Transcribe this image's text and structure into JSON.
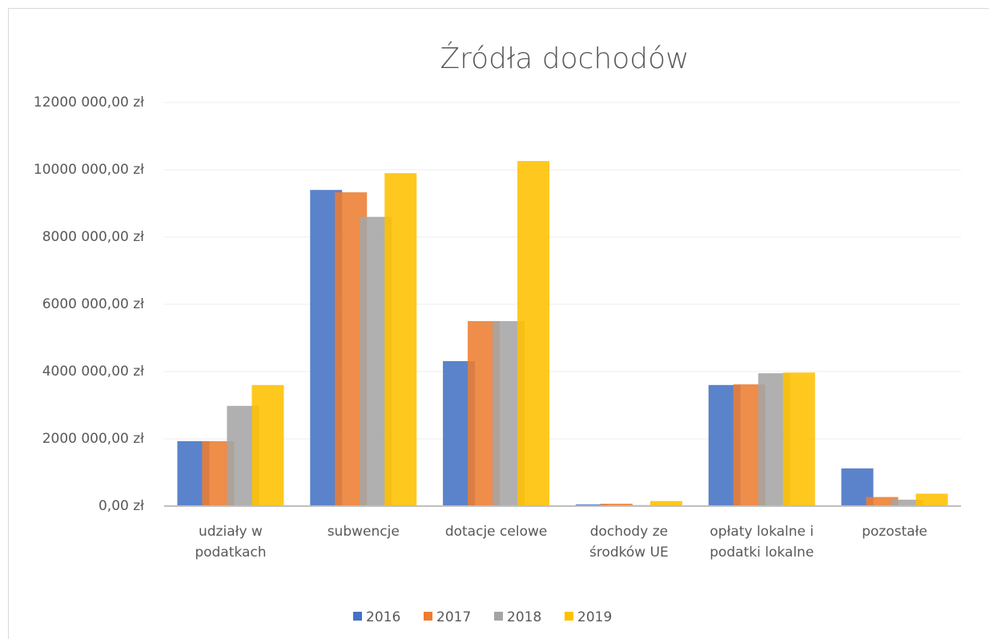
{
  "chart_data": {
    "type": "bar",
    "title": "Źródła dochodów",
    "categories": [
      "udziały w podatkach",
      "subwencje",
      "dotacje celowe",
      "dochody ze środków UE",
      "opłaty lokalne i podatki lokalne",
      "pozostałe"
    ],
    "series": [
      {
        "name": "2016",
        "color": "#4472c4",
        "values": [
          1930000,
          9400000,
          4310000,
          50000,
          3600000,
          1120000
        ]
      },
      {
        "name": "2017",
        "color": "#ed7d31",
        "values": [
          1930000,
          9330000,
          5500000,
          70000,
          3620000,
          270000
        ]
      },
      {
        "name": "2018",
        "color": "#a5a5a5",
        "values": [
          2980000,
          8600000,
          5500000,
          30000,
          3950000,
          190000
        ]
      },
      {
        "name": "2019",
        "color": "#ffc000",
        "values": [
          3600000,
          9900000,
          10260000,
          150000,
          3970000,
          370000
        ]
      }
    ],
    "ylim": [
      0,
      12000000
    ],
    "yticks": [
      {
        "value": 0,
        "label": "0,00 zł"
      },
      {
        "value": 2000000,
        "label": "2000 000,00 zł"
      },
      {
        "value": 4000000,
        "label": "4000 000,00 zł"
      },
      {
        "value": 6000000,
        "label": "6000 000,00 zł"
      },
      {
        "value": 8000000,
        "label": "8000 000,00 zł"
      },
      {
        "value": 10000000,
        "label": "10000 000,00 zł"
      },
      {
        "value": 12000000,
        "label": "12000 000,00 zł"
      }
    ],
    "grid": true,
    "legend": "bottom"
  }
}
